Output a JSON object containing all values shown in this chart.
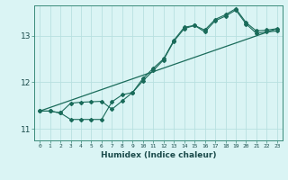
{
  "xlabel": "Humidex (Indice chaleur)",
  "background_color": "#daf4f4",
  "grid_color": "#b8e0e0",
  "line_color": "#1a6b5a",
  "xlim": [
    -0.5,
    23.5
  ],
  "ylim": [
    10.75,
    13.65
  ],
  "yticks": [
    11,
    12,
    13
  ],
  "xticks": [
    0,
    1,
    2,
    3,
    4,
    5,
    6,
    7,
    8,
    9,
    10,
    11,
    12,
    13,
    14,
    15,
    16,
    17,
    18,
    19,
    20,
    21,
    22,
    23
  ],
  "series1_x": [
    0,
    1,
    2,
    3,
    4,
    5,
    6,
    7,
    8,
    9,
    10,
    11,
    12,
    13,
    14,
    15,
    16,
    17,
    18,
    19,
    20,
    21,
    22,
    23
  ],
  "series1_y": [
    11.38,
    11.38,
    11.34,
    11.55,
    11.57,
    11.58,
    11.59,
    11.42,
    11.6,
    11.78,
    12.08,
    12.3,
    12.5,
    12.9,
    13.18,
    13.22,
    13.12,
    13.35,
    13.45,
    13.58,
    13.28,
    13.1,
    13.12,
    13.15
  ],
  "series2_x": [
    0,
    1,
    2,
    3,
    4,
    5,
    6,
    7,
    8,
    9,
    10,
    11,
    12,
    13,
    14,
    15,
    16,
    17,
    18,
    19,
    20,
    21,
    22,
    23
  ],
  "series2_y": [
    11.38,
    11.38,
    11.34,
    11.2,
    11.2,
    11.2,
    11.2,
    11.58,
    11.73,
    11.78,
    12.03,
    12.25,
    12.48,
    12.88,
    13.15,
    13.22,
    13.08,
    13.32,
    13.42,
    13.55,
    13.25,
    13.05,
    13.08,
    13.1
  ],
  "series3_x": [
    0,
    23
  ],
  "series3_y": [
    11.38,
    13.15
  ]
}
